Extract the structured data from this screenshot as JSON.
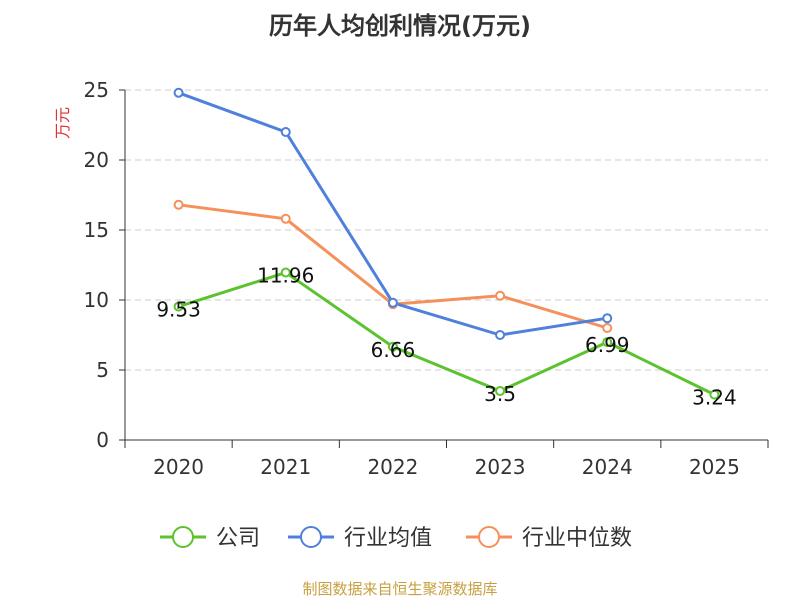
{
  "chart_data": {
    "type": "line",
    "title": "历年人均创利情况(万元)",
    "ylabel": "万元",
    "xlabel": "",
    "categories": [
      "2020",
      "2021",
      "2022",
      "2023",
      "2024",
      "2025"
    ],
    "ylim": [
      0,
      25
    ],
    "yticks": [
      0,
      5,
      10,
      15,
      20,
      25
    ],
    "grid": true,
    "legend_position": "bottom",
    "series": [
      {
        "name": "公司",
        "color": "#5cc22e",
        "values": [
          9.53,
          11.96,
          6.66,
          3.5,
          6.99,
          3.24
        ],
        "labels": [
          "9.53",
          "11.96",
          "6.66",
          "3.5",
          "6.99",
          "3.24"
        ]
      },
      {
        "name": "行业均值",
        "color": "#4f80dc",
        "values": [
          24.8,
          22.0,
          9.8,
          7.5,
          8.7,
          null
        ]
      },
      {
        "name": "行业中位数",
        "color": "#f5905a",
        "values": [
          16.8,
          15.8,
          9.7,
          10.3,
          8.0,
          null
        ]
      }
    ]
  },
  "footer": "制图数据来自恒生聚源数据库"
}
